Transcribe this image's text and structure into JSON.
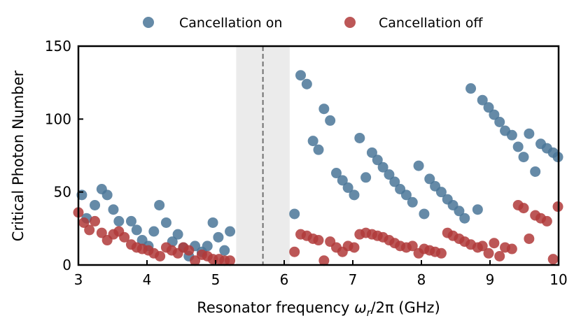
{
  "chart_data": {
    "type": "scatter",
    "xlabel": "Resonator frequency ω_r/2π (GHz)",
    "xlabel_parts": {
      "pre": "Resonator frequency ",
      "omega": "ω",
      "sub": "r",
      "post": "/2π (GHz)"
    },
    "ylabel": "Critical Photon Number",
    "xlim": [
      3,
      10
    ],
    "ylim": [
      0,
      150
    ],
    "xticks": [
      3,
      4,
      5,
      6,
      7,
      8,
      9,
      10
    ],
    "yticks": [
      0,
      50,
      100,
      150
    ],
    "grid": false,
    "legend_placement": "top-center-outside",
    "shaded_region": {
      "x": [
        5.3,
        6.08
      ],
      "color": "#ebebeb"
    },
    "dashed_line": {
      "x": 5.69,
      "color": "#707070"
    },
    "series": [
      {
        "name": "Cancellation on",
        "color": "#4a7698",
        "x": [
          3.05,
          3.12,
          3.24,
          3.34,
          3.42,
          3.51,
          3.59,
          3.77,
          3.85,
          3.93,
          4.02,
          4.1,
          4.18,
          4.28,
          4.37,
          4.45,
          4.53,
          4.61,
          4.7,
          4.8,
          4.88,
          4.96,
          5.04,
          5.13,
          5.21,
          6.15,
          6.24,
          6.33,
          6.42,
          6.5,
          6.58,
          6.67,
          6.76,
          6.85,
          6.93,
          7.02,
          7.1,
          7.19,
          7.28,
          7.36,
          7.44,
          7.53,
          7.61,
          7.69,
          7.78,
          7.87,
          7.96,
          8.04,
          8.12,
          8.2,
          8.29,
          8.38,
          8.46,
          8.55,
          8.63,
          8.72,
          8.82,
          8.89,
          8.98,
          9.06,
          9.14,
          9.22,
          9.32,
          9.41,
          9.49,
          9.57,
          9.66,
          9.74,
          9.83,
          9.92,
          9.99
        ],
        "y": [
          48,
          32,
          41,
          52,
          48,
          38,
          30,
          30,
          24,
          17,
          13,
          23,
          41,
          29,
          16,
          21,
          12,
          6,
          13,
          9,
          13,
          29,
          19,
          10,
          23,
          35,
          130,
          124,
          85,
          79,
          107,
          99,
          63,
          58,
          53,
          48,
          87,
          60,
          77,
          72,
          67,
          62,
          57,
          52,
          48,
          43,
          68,
          35,
          59,
          54,
          50,
          45,
          41,
          37,
          32,
          121,
          38,
          113,
          108,
          103,
          98,
          92,
          89,
          81,
          74,
          90,
          64,
          83,
          80,
          77,
          74
        ]
      },
      {
        "name": "Cancellation off",
        "color": "#b03a3a",
        "x": [
          3.0,
          3.08,
          3.16,
          3.24,
          3.34,
          3.42,
          3.51,
          3.59,
          3.67,
          3.77,
          3.85,
          3.93,
          4.02,
          4.1,
          4.19,
          4.28,
          4.36,
          4.45,
          4.53,
          4.61,
          4.7,
          4.8,
          4.88,
          4.96,
          5.05,
          5.13,
          5.21,
          6.15,
          6.24,
          6.33,
          6.42,
          6.5,
          6.58,
          6.67,
          6.76,
          6.85,
          6.93,
          7.02,
          7.1,
          7.19,
          7.28,
          7.36,
          7.44,
          7.53,
          7.61,
          7.69,
          7.78,
          7.87,
          7.96,
          8.04,
          8.12,
          8.2,
          8.29,
          8.38,
          8.46,
          8.55,
          8.63,
          8.72,
          8.82,
          8.89,
          8.98,
          9.06,
          9.14,
          9.22,
          9.32,
          9.41,
          9.49,
          9.57,
          9.66,
          9.74,
          9.83,
          9.92,
          9.99
        ],
        "y": [
          36,
          29,
          24,
          30,
          22,
          17,
          21,
          23,
          19,
          14,
          12,
          11,
          10,
          8,
          6,
          12,
          10,
          8,
          12,
          10,
          3,
          7,
          6,
          4,
          4,
          3,
          3,
          9,
          21,
          20,
          18,
          17,
          3,
          16,
          12,
          9,
          13,
          12,
          21,
          22,
          21,
          20,
          19,
          17,
          15,
          13,
          12,
          13,
          8,
          11,
          10,
          9,
          8,
          22,
          20,
          18,
          16,
          14,
          12,
          13,
          8,
          15,
          6,
          12,
          11,
          41,
          39,
          18,
          34,
          32,
          30,
          4,
          40
        ]
      }
    ]
  }
}
